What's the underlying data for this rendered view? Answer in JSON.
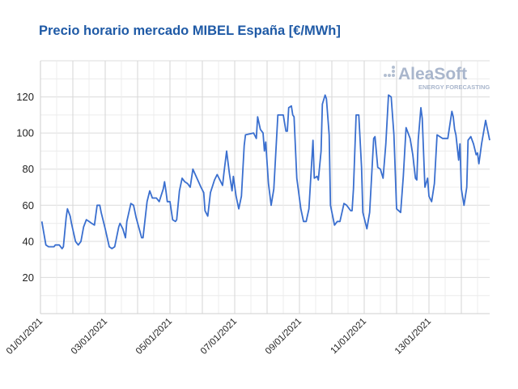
{
  "chart_data": {
    "type": "line",
    "title": "Precio horario mercado MIBEL España [€/MWh]",
    "xlabel": "",
    "ylabel": "",
    "ylim": [
      0,
      140
    ],
    "yticks": [
      20,
      40,
      60,
      80,
      100,
      120
    ],
    "xlim": [
      "2021-01-01 00:00",
      "2021-01-14 21:00"
    ],
    "xticks": [
      "01/01/2021",
      "03/01/2021",
      "05/01/2021",
      "07/01/2021",
      "09/01/2021",
      "11/01/2021",
      "13/01/2021"
    ],
    "grid": true,
    "legend": "none",
    "line_color": "#3a6fcf",
    "series": [
      {
        "points": [
          [
            "2021-01-01 01:00",
            51
          ],
          [
            "2021-01-01 04:00",
            38
          ],
          [
            "2021-01-01 06:00",
            37
          ],
          [
            "2021-01-01 10:00",
            37
          ],
          [
            "2021-01-01 11:00",
            38
          ],
          [
            "2021-01-01 14:00",
            38
          ],
          [
            "2021-01-01 16:00",
            36
          ],
          [
            "2021-01-01 17:00",
            37
          ],
          [
            "2021-01-01 19:00",
            53
          ],
          [
            "2021-01-01 20:00",
            58
          ],
          [
            "2021-01-01 22:00",
            54
          ],
          [
            "2021-01-01 23:00",
            50
          ],
          [
            "2021-01-02 02:00",
            40
          ],
          [
            "2021-01-02 04:00",
            38
          ],
          [
            "2021-01-02 06:00",
            40
          ],
          [
            "2021-01-02 08:00",
            48
          ],
          [
            "2021-01-02 10:00",
            52
          ],
          [
            "2021-01-02 12:00",
            51
          ],
          [
            "2021-01-02 14:00",
            50
          ],
          [
            "2021-01-02 16:00",
            49
          ],
          [
            "2021-01-02 18:00",
            60
          ],
          [
            "2021-01-02 20:00",
            60
          ],
          [
            "2021-01-02 21:00",
            56
          ],
          [
            "2021-01-03 00:00",
            47
          ],
          [
            "2021-01-03 03:00",
            37
          ],
          [
            "2021-01-03 05:00",
            36
          ],
          [
            "2021-01-03 07:00",
            37
          ],
          [
            "2021-01-03 10:00",
            48
          ],
          [
            "2021-01-03 11:00",
            50
          ],
          [
            "2021-01-03 13:00",
            47
          ],
          [
            "2021-01-03 15:00",
            42
          ],
          [
            "2021-01-03 16:00",
            51
          ],
          [
            "2021-01-03 19:00",
            61
          ],
          [
            "2021-01-03 21:00",
            60
          ],
          [
            "2021-01-03 23:00",
            53
          ],
          [
            "2021-01-04 03:00",
            42
          ],
          [
            "2021-01-04 04:00",
            42
          ],
          [
            "2021-01-04 07:00",
            62
          ],
          [
            "2021-01-04 09:00",
            68
          ],
          [
            "2021-01-04 11:00",
            64
          ],
          [
            "2021-01-04 14:00",
            64
          ],
          [
            "2021-01-04 16:00",
            62
          ],
          [
            "2021-01-04 19:00",
            69
          ],
          [
            "2021-01-04 20:00",
            73
          ],
          [
            "2021-01-04 21:00",
            68
          ],
          [
            "2021-01-04 22:00",
            62
          ],
          [
            "2021-01-05 00:00",
            62
          ],
          [
            "2021-01-05 02:00",
            52
          ],
          [
            "2021-01-05 04:00",
            51
          ],
          [
            "2021-01-05 05:00",
            52
          ],
          [
            "2021-01-05 07:00",
            68
          ],
          [
            "2021-01-05 09:00",
            75
          ],
          [
            "2021-01-05 11:00",
            73
          ],
          [
            "2021-01-05 13:00",
            72
          ],
          [
            "2021-01-05 15:00",
            70
          ],
          [
            "2021-01-05 17:00",
            80
          ],
          [
            "2021-01-05 20:00",
            75
          ],
          [
            "2021-01-05 23:00",
            70
          ],
          [
            "2021-01-06 01:00",
            67
          ],
          [
            "2021-01-06 02:00",
            57
          ],
          [
            "2021-01-06 04:00",
            54
          ],
          [
            "2021-01-06 06:00",
            67
          ],
          [
            "2021-01-06 09:00",
            74
          ],
          [
            "2021-01-06 11:00",
            77
          ],
          [
            "2021-01-06 13:00",
            74
          ],
          [
            "2021-01-06 15:00",
            71
          ],
          [
            "2021-01-06 16:00",
            78
          ],
          [
            "2021-01-06 18:00",
            90
          ],
          [
            "2021-01-06 20:00",
            78
          ],
          [
            "2021-01-06 22:00",
            68
          ],
          [
            "2021-01-06 23:00",
            76
          ],
          [
            "2021-01-07 01:00",
            65
          ],
          [
            "2021-01-07 03:00",
            58
          ],
          [
            "2021-01-07 05:00",
            65
          ],
          [
            "2021-01-07 07:00",
            93
          ],
          [
            "2021-01-07 08:00",
            99
          ],
          [
            "2021-01-07 14:00",
            100
          ],
          [
            "2021-01-07 16:00",
            97
          ],
          [
            "2021-01-07 17:00",
            109
          ],
          [
            "2021-01-07 19:00",
            102
          ],
          [
            "2021-01-07 21:00",
            100
          ],
          [
            "2021-01-07 22:00",
            90
          ],
          [
            "2021-01-07 23:00",
            95
          ],
          [
            "2021-01-08 01:00",
            72
          ],
          [
            "2021-01-08 03:00",
            60
          ],
          [
            "2021-01-08 05:00",
            69
          ],
          [
            "2021-01-08 08:00",
            110
          ],
          [
            "2021-01-08 12:00",
            110
          ],
          [
            "2021-01-08 14:00",
            101
          ],
          [
            "2021-01-08 15:00",
            101
          ],
          [
            "2021-01-08 16:00",
            114
          ],
          [
            "2021-01-08 18:00",
            115
          ],
          [
            "2021-01-08 19:00",
            110
          ],
          [
            "2021-01-08 20:00",
            109
          ],
          [
            "2021-01-08 22:00",
            75
          ],
          [
            "2021-01-09 01:00",
            58
          ],
          [
            "2021-01-09 03:00",
            51
          ],
          [
            "2021-01-09 05:00",
            51
          ],
          [
            "2021-01-09 07:00",
            58
          ],
          [
            "2021-01-09 10:00",
            96
          ],
          [
            "2021-01-09 11:00",
            75
          ],
          [
            "2021-01-09 13:00",
            76
          ],
          [
            "2021-01-09 14:00",
            74
          ],
          [
            "2021-01-09 16:00",
            90
          ],
          [
            "2021-01-09 17:00",
            116
          ],
          [
            "2021-01-09 19:00",
            121
          ],
          [
            "2021-01-09 20:00",
            119
          ],
          [
            "2021-01-09 22:00",
            99
          ],
          [
            "2021-01-09 23:00",
            60
          ],
          [
            "2021-01-10 02:00",
            49
          ],
          [
            "2021-01-10 04:00",
            51
          ],
          [
            "2021-01-10 06:00",
            51
          ],
          [
            "2021-01-10 09:00",
            61
          ],
          [
            "2021-01-10 11:00",
            60
          ],
          [
            "2021-01-10 14:00",
            57
          ],
          [
            "2021-01-10 15:00",
            57
          ],
          [
            "2021-01-10 16:00",
            69
          ],
          [
            "2021-01-10 18:00",
            110
          ],
          [
            "2021-01-10 20:00",
            110
          ],
          [
            "2021-01-10 22:00",
            81
          ],
          [
            "2021-01-10 23:00",
            56
          ],
          [
            "2021-01-11 02:00",
            47
          ],
          [
            "2021-01-11 04:00",
            56
          ],
          [
            "2021-01-11 07:00",
            97
          ],
          [
            "2021-01-11 08:00",
            98
          ],
          [
            "2021-01-11 10:00",
            81
          ],
          [
            "2021-01-11 12:00",
            80
          ],
          [
            "2021-01-11 14:00",
            75
          ],
          [
            "2021-01-11 16:00",
            94
          ],
          [
            "2021-01-11 18:00",
            121
          ],
          [
            "2021-01-11 20:00",
            120
          ],
          [
            "2021-01-11 22:00",
            99
          ],
          [
            "2021-01-12 00:00",
            58
          ],
          [
            "2021-01-12 03:00",
            56
          ],
          [
            "2021-01-12 05:00",
            76
          ],
          [
            "2021-01-12 07:00",
            103
          ],
          [
            "2021-01-12 10:00",
            97
          ],
          [
            "2021-01-12 12:00",
            88
          ],
          [
            "2021-01-12 14:00",
            75
          ],
          [
            "2021-01-12 15:00",
            74
          ],
          [
            "2021-01-12 16:00",
            96
          ],
          [
            "2021-01-12 18:00",
            114
          ],
          [
            "2021-01-12 19:00",
            108
          ],
          [
            "2021-01-12 21:00",
            70
          ],
          [
            "2021-01-12 23:00",
            75
          ],
          [
            "2021-01-13 00:00",
            65
          ],
          [
            "2021-01-13 02:00",
            62
          ],
          [
            "2021-01-13 04:00",
            72
          ],
          [
            "2021-01-13 06:00",
            99
          ],
          [
            "2021-01-13 10:00",
            97
          ],
          [
            "2021-01-13 14:00",
            97
          ],
          [
            "2021-01-13 17:00",
            112
          ],
          [
            "2021-01-13 18:00",
            109
          ],
          [
            "2021-01-13 19:00",
            102
          ],
          [
            "2021-01-13 20:00",
            99
          ],
          [
            "2021-01-13 22:00",
            85
          ],
          [
            "2021-01-13 23:00",
            94
          ],
          [
            "2021-01-14 00:00",
            69
          ],
          [
            "2021-01-14 02:00",
            60
          ],
          [
            "2021-01-14 04:00",
            70
          ],
          [
            "2021-01-14 05:00",
            96
          ],
          [
            "2021-01-14 07:00",
            98
          ],
          [
            "2021-01-14 09:00",
            94
          ],
          [
            "2021-01-14 11:00",
            88
          ],
          [
            "2021-01-14 12:00",
            89
          ],
          [
            "2021-01-14 13:00",
            83
          ],
          [
            "2021-01-14 15:00",
            94
          ],
          [
            "2021-01-14 18:00",
            107
          ],
          [
            "2021-01-14 21:00",
            96
          ]
        ]
      }
    ]
  },
  "logo": {
    "name": "AleaSoft",
    "tagline": "ENERGY FORECASTING"
  }
}
